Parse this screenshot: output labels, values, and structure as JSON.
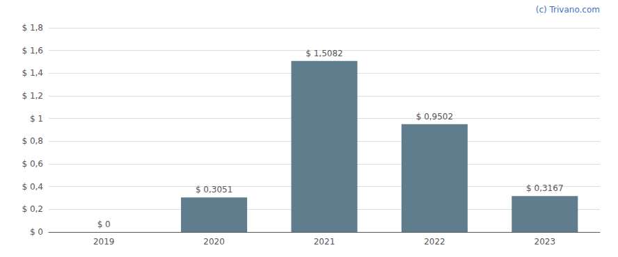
{
  "chart_data": {
    "type": "bar",
    "categories": [
      "2019",
      "2020",
      "2021",
      "2022",
      "2023"
    ],
    "values": [
      0.0,
      0.3051,
      1.5082,
      0.9502,
      0.3167
    ],
    "value_labels": [
      "$ 0",
      "$ 0,3051",
      "$ 1,5082",
      "$ 0,9502",
      "$ 0,3167"
    ],
    "data_labels": true,
    "color": "#5f7d8c",
    "ylim": [
      0,
      1.8
    ],
    "yticks": [
      {
        "value": 0.0,
        "label": "$ 0"
      },
      {
        "value": 0.2,
        "label": "$ 0,2"
      },
      {
        "value": 0.4,
        "label": "$ 0,4"
      },
      {
        "value": 0.6,
        "label": "$ 0,6"
      },
      {
        "value": 0.8,
        "label": "$ 0,8"
      },
      {
        "value": 1.0,
        "label": "$ 1"
      },
      {
        "value": 1.2,
        "label": "$ 1,2"
      },
      {
        "value": 1.4,
        "label": "$ 1,4"
      },
      {
        "value": 1.6,
        "label": "$ 1,6"
      },
      {
        "value": 1.8,
        "label": "$ 1,8"
      }
    ],
    "grid": true,
    "annotations": [
      "(c) Trivano.com"
    ]
  }
}
